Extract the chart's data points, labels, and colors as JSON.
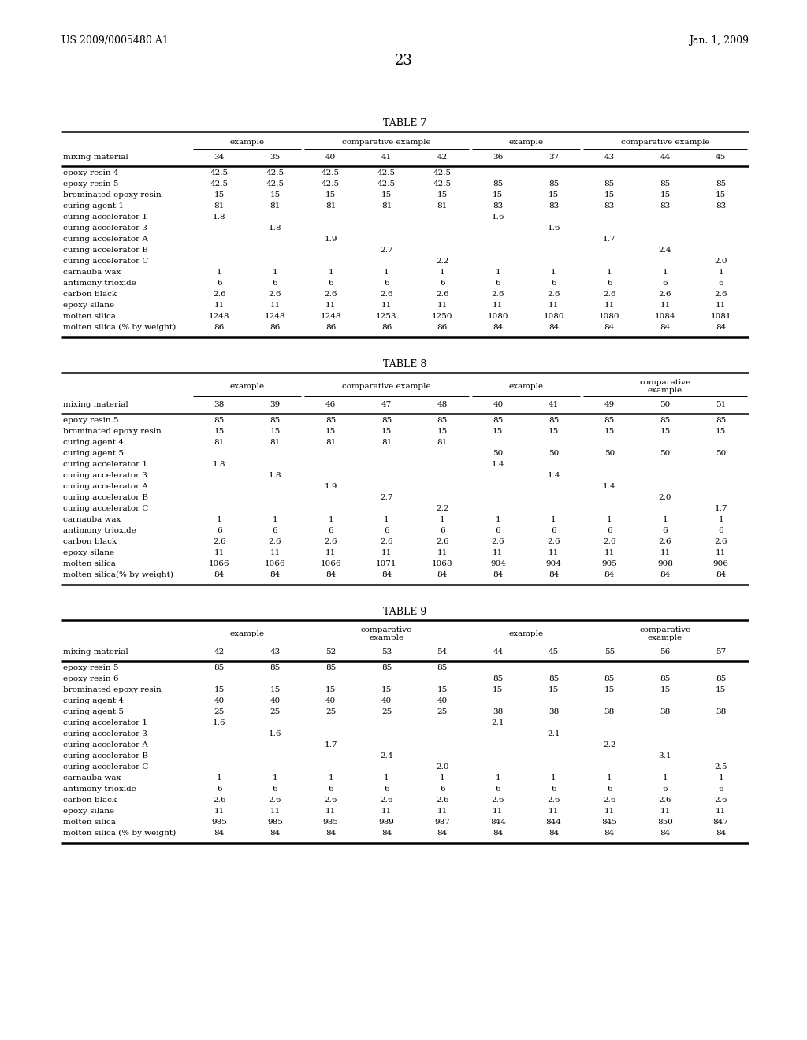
{
  "header_left": "US 2009/0005480 A1",
  "header_right": "Jan. 1, 2009",
  "page_number": "23",
  "background_color": "#ffffff",
  "text_color": "#000000",
  "table7": {
    "title": "TABLE 7",
    "group_headers": [
      {
        "label": "example",
        "cols": [
          0,
          1
        ]
      },
      {
        "label": "comparative example",
        "cols": [
          2,
          3,
          4
        ]
      },
      {
        "label": "example",
        "cols": [
          5,
          6
        ]
      },
      {
        "label": "comparative example",
        "cols": [
          7,
          8,
          9
        ]
      }
    ],
    "col_headers": [
      "34",
      "35",
      "40",
      "41",
      "42",
      "36",
      "37",
      "43",
      "44",
      "45"
    ],
    "row_label": "mixing material",
    "rows": [
      [
        "epoxy resin 4",
        "42.5",
        "42.5",
        "42.5",
        "42.5",
        "42.5",
        "",
        "",
        "",
        "",
        ""
      ],
      [
        "epoxy resin 5",
        "42.5",
        "42.5",
        "42.5",
        "42.5",
        "42.5",
        "85",
        "85",
        "85",
        "85",
        "85"
      ],
      [
        "brominated epoxy resin",
        "15",
        "15",
        "15",
        "15",
        "15",
        "15",
        "15",
        "15",
        "15",
        "15"
      ],
      [
        "curing agent 1",
        "81",
        "81",
        "81",
        "81",
        "81",
        "83",
        "83",
        "83",
        "83",
        "83"
      ],
      [
        "curing accelerator 1",
        "1.8",
        "",
        "",
        "",
        "",
        "1.6",
        "",
        "",
        "",
        ""
      ],
      [
        "curing accelerator 3",
        "",
        "1.8",
        "",
        "",
        "",
        "",
        "1.6",
        "",
        "",
        ""
      ],
      [
        "curing accelerator A",
        "",
        "",
        "1.9",
        "",
        "",
        "",
        "",
        "1.7",
        "",
        ""
      ],
      [
        "curing accelerator B",
        "",
        "",
        "",
        "2.7",
        "",
        "",
        "",
        "",
        "2.4",
        ""
      ],
      [
        "curing accelerator C",
        "",
        "",
        "",
        "",
        "2.2",
        "",
        "",
        "",
        "",
        "2.0"
      ],
      [
        "carnauba wax",
        "1",
        "1",
        "1",
        "1",
        "1",
        "1",
        "1",
        "1",
        "1",
        "1"
      ],
      [
        "antimony trioxide",
        "6",
        "6",
        "6",
        "6",
        "6",
        "6",
        "6",
        "6",
        "6",
        "6"
      ],
      [
        "carbon black",
        "2.6",
        "2.6",
        "2.6",
        "2.6",
        "2.6",
        "2.6",
        "2.6",
        "2.6",
        "2.6",
        "2.6"
      ],
      [
        "epoxy silane",
        "11",
        "11",
        "11",
        "11",
        "11",
        "11",
        "11",
        "11",
        "11",
        "11"
      ],
      [
        "molten silica",
        "1248",
        "1248",
        "1248",
        "1253",
        "1250",
        "1080",
        "1080",
        "1080",
        "1084",
        "1081"
      ],
      [
        "molten silica (% by weight)",
        "86",
        "86",
        "86",
        "86",
        "86",
        "84",
        "84",
        "84",
        "84",
        "84"
      ]
    ]
  },
  "table8": {
    "title": "TABLE 8",
    "group_headers": [
      {
        "label": "example",
        "cols": [
          0,
          1
        ]
      },
      {
        "label": "comparative example",
        "cols": [
          2,
          3,
          4
        ]
      },
      {
        "label": "example",
        "cols": [
          5,
          6
        ]
      },
      {
        "label": "comparative\nexample",
        "cols": [
          7,
          8,
          9
        ]
      }
    ],
    "col_headers": [
      "38",
      "39",
      "46",
      "47",
      "48",
      "40",
      "41",
      "49",
      "50",
      "51"
    ],
    "row_label": "mixing material",
    "rows": [
      [
        "epoxy resin 5",
        "85",
        "85",
        "85",
        "85",
        "85",
        "85",
        "85",
        "85",
        "85",
        "85"
      ],
      [
        "brominated epoxy resin",
        "15",
        "15",
        "15",
        "15",
        "15",
        "15",
        "15",
        "15",
        "15",
        "15"
      ],
      [
        "curing agent 4",
        "81",
        "81",
        "81",
        "81",
        "81",
        "",
        "",
        "",
        "",
        ""
      ],
      [
        "curing agent 5",
        "",
        "",
        "",
        "",
        "",
        "50",
        "50",
        "50",
        "50",
        "50"
      ],
      [
        "curing accelerator 1",
        "1.8",
        "",
        "",
        "",
        "",
        "1.4",
        "",
        "",
        "",
        ""
      ],
      [
        "curing accelerator 3",
        "",
        "1.8",
        "",
        "",
        "",
        "",
        "1.4",
        "",
        "",
        ""
      ],
      [
        "curing accelerator A",
        "",
        "",
        "1.9",
        "",
        "",
        "",
        "",
        "1.4",
        "",
        ""
      ],
      [
        "curing accelerator B",
        "",
        "",
        "",
        "2.7",
        "",
        "",
        "",
        "",
        "2.0",
        ""
      ],
      [
        "curing accelerator C",
        "",
        "",
        "",
        "",
        "2.2",
        "",
        "",
        "",
        "",
        "1.7"
      ],
      [
        "carnauba wax",
        "1",
        "1",
        "1",
        "1",
        "1",
        "1",
        "1",
        "1",
        "1",
        "1"
      ],
      [
        "antimony trioxide",
        "6",
        "6",
        "6",
        "6",
        "6",
        "6",
        "6",
        "6",
        "6",
        "6"
      ],
      [
        "carbon black",
        "2.6",
        "2.6",
        "2.6",
        "2.6",
        "2.6",
        "2.6",
        "2.6",
        "2.6",
        "2.6",
        "2.6"
      ],
      [
        "epoxy silane",
        "11",
        "11",
        "11",
        "11",
        "11",
        "11",
        "11",
        "11",
        "11",
        "11"
      ],
      [
        "molten silica",
        "1066",
        "1066",
        "1066",
        "1071",
        "1068",
        "904",
        "904",
        "905",
        "908",
        "906"
      ],
      [
        "molten silica(% by weight)",
        "84",
        "84",
        "84",
        "84",
        "84",
        "84",
        "84",
        "84",
        "84",
        "84"
      ]
    ]
  },
  "table9": {
    "title": "TABLE 9",
    "group_headers": [
      {
        "label": "example",
        "cols": [
          0,
          1
        ]
      },
      {
        "label": "comparative\nexample",
        "cols": [
          2,
          3,
          4
        ]
      },
      {
        "label": "example",
        "cols": [
          5,
          6
        ]
      },
      {
        "label": "comparative\nexample",
        "cols": [
          7,
          8,
          9
        ]
      }
    ],
    "col_headers": [
      "42",
      "43",
      "52",
      "53",
      "54",
      "44",
      "45",
      "55",
      "56",
      "57"
    ],
    "row_label": "mixing material",
    "rows": [
      [
        "epoxy resin 5",
        "85",
        "85",
        "85",
        "85",
        "85",
        "",
        "",
        "",
        "",
        ""
      ],
      [
        "epoxy resin 6",
        "",
        "",
        "",
        "",
        "",
        "85",
        "85",
        "85",
        "85",
        "85"
      ],
      [
        "brominated epoxy resin",
        "15",
        "15",
        "15",
        "15",
        "15",
        "15",
        "15",
        "15",
        "15",
        "15"
      ],
      [
        "curing agent 4",
        "40",
        "40",
        "40",
        "40",
        "40",
        "",
        "",
        "",
        "",
        ""
      ],
      [
        "curing agent 5",
        "25",
        "25",
        "25",
        "25",
        "25",
        "38",
        "38",
        "38",
        "38",
        "38"
      ],
      [
        "curing accelerator 1",
        "1.6",
        "",
        "",
        "",
        "",
        "2.1",
        "",
        "",
        "",
        ""
      ],
      [
        "curing accelerator 3",
        "",
        "1.6",
        "",
        "",
        "",
        "",
        "2.1",
        "",
        "",
        ""
      ],
      [
        "curing accelerator A",
        "",
        "",
        "1.7",
        "",
        "",
        "",
        "",
        "2.2",
        "",
        ""
      ],
      [
        "curing accelerator B",
        "",
        "",
        "",
        "2.4",
        "",
        "",
        "",
        "",
        "3.1",
        ""
      ],
      [
        "curing accelerator C",
        "",
        "",
        "",
        "",
        "2.0",
        "",
        "",
        "",
        "",
        "2.5"
      ],
      [
        "carnauba wax",
        "1",
        "1",
        "1",
        "1",
        "1",
        "1",
        "1",
        "1",
        "1",
        "1"
      ],
      [
        "antimony trioxide",
        "6",
        "6",
        "6",
        "6",
        "6",
        "6",
        "6",
        "6",
        "6",
        "6"
      ],
      [
        "carbon black",
        "2.6",
        "2.6",
        "2.6",
        "2.6",
        "2.6",
        "2.6",
        "2.6",
        "2.6",
        "2.6",
        "2.6"
      ],
      [
        "epoxy silane",
        "11",
        "11",
        "11",
        "11",
        "11",
        "11",
        "11",
        "11",
        "11",
        "11"
      ],
      [
        "molten silica",
        "985",
        "985",
        "985",
        "989",
        "987",
        "844",
        "844",
        "845",
        "850",
        "847"
      ],
      [
        "molten silica (% by weight)",
        "84",
        "84",
        "84",
        "84",
        "84",
        "84",
        "84",
        "84",
        "84",
        "84"
      ]
    ]
  }
}
